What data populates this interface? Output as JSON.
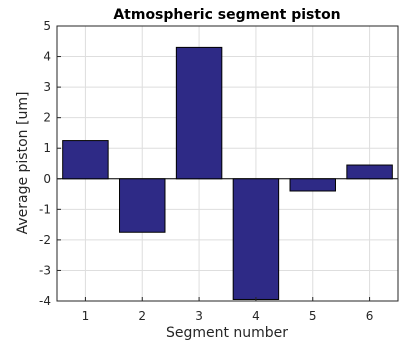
{
  "chart_data": {
    "type": "bar",
    "title": "Atmospheric segment piston",
    "xlabel": "Segment number",
    "ylabel": "Average piston [um]",
    "categories": [
      "1",
      "2",
      "3",
      "4",
      "5",
      "6"
    ],
    "values": [
      1.25,
      -1.75,
      4.3,
      -3.95,
      -0.4,
      0.45
    ],
    "ylim": [
      -4,
      5
    ],
    "yticks": [
      "-4",
      "-3",
      "-2",
      "-1",
      "0",
      "1",
      "2",
      "3",
      "4",
      "5"
    ],
    "grid": true,
    "bar_color": "#2e2a86",
    "bar_edge_color": "#000000"
  }
}
